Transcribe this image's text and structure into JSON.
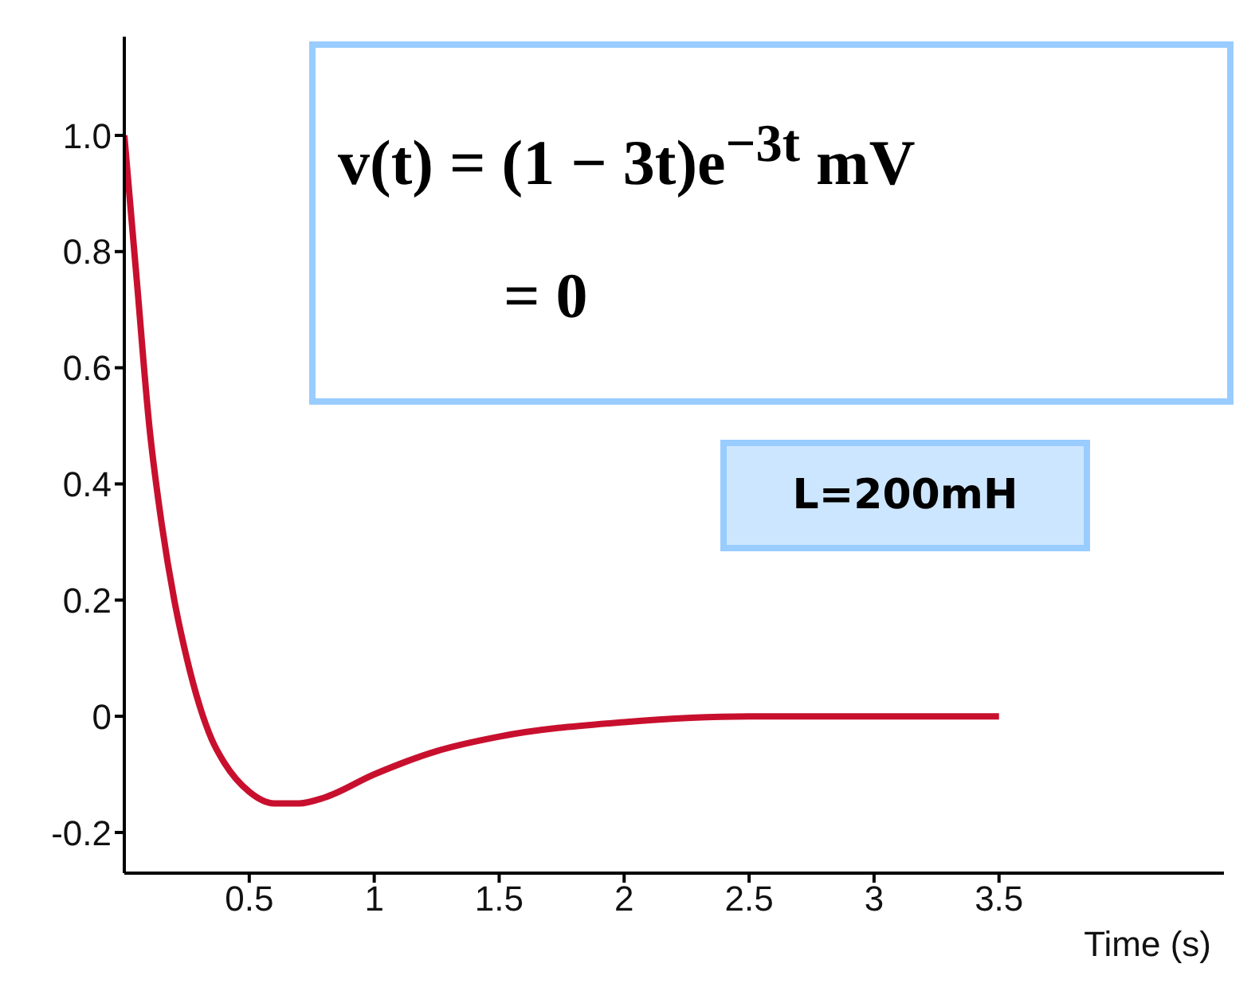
{
  "chart_data": {
    "type": "line",
    "xlabel": "Time (s)",
    "annotations": [
      "v(t) = (1 − 3t)e$^{−3t}$ mV",
      "= 0",
      "L=200mH"
    ],
    "x": [
      0,
      0.05,
      0.1,
      0.15,
      0.2,
      0.25,
      0.3,
      0.35,
      0.4,
      0.5,
      0.6,
      0.7,
      0.8,
      1,
      1.25,
      1.5,
      2,
      2.5,
      3,
      3.5
    ],
    "series": [
      {
        "color": "#c8102e",
        "values": [
          1,
          0.75,
          0.5,
          0.33,
          0.2,
          0.1,
          0.02,
          -0.04,
          -0.08,
          -0.13,
          -0.15,
          -0.15,
          -0.14,
          -0.1,
          -0.06,
          -0.035,
          -0.01,
          0,
          0,
          0
        ]
      }
    ],
    "xlim": [
      0,
      4.4
    ],
    "xticks": [
      0.5,
      1,
      1.5,
      2,
      2.5,
      3,
      3.5
    ],
    "ylim": [
      -0.27,
      1.17
    ],
    "yticks": [
      {
        "value": 1,
        "label": "1.0"
      },
      0.8,
      0.6,
      0.4,
      0.2,
      0,
      -0.2
    ],
    "grid": false,
    "legend": false,
    "marker": "none",
    "line_style": "solid"
  }
}
